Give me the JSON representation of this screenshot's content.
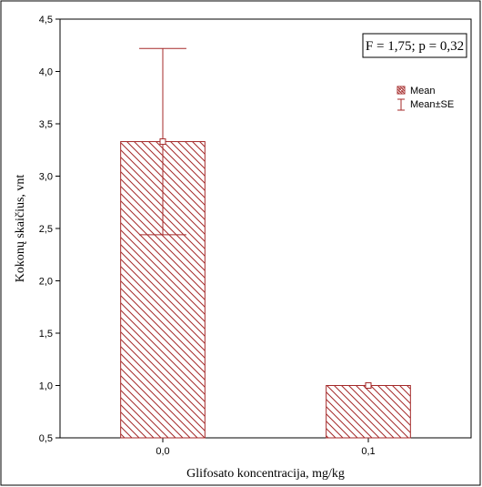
{
  "chart_data": {
    "type": "bar",
    "categories": [
      "0,0",
      "0,1"
    ],
    "values": [
      3.33,
      1.0
    ],
    "errors": [
      0.89,
      0.0
    ],
    "ylabel": "Kokonų skaičius, vnt",
    "xlabel": "Glifosato koncentracija, mg/kg",
    "ylim": [
      0.5,
      4.5
    ],
    "yticks": [
      "0,5",
      "1,0",
      "1,5",
      "2,0",
      "2,5",
      "3,0",
      "3,5",
      "4,0",
      "4,5"
    ],
    "ytick_values": [
      0.5,
      1.0,
      1.5,
      2.0,
      2.5,
      3.0,
      3.5,
      4.0,
      4.5
    ],
    "annotation": "F = 1,75; p = 0,32",
    "legend": {
      "placement": "top-right",
      "items": [
        "Mean",
        "Mean±SE"
      ]
    },
    "grid": false,
    "bar_color": "#a52a2a",
    "bar_fill": "diagonal-hatch"
  }
}
